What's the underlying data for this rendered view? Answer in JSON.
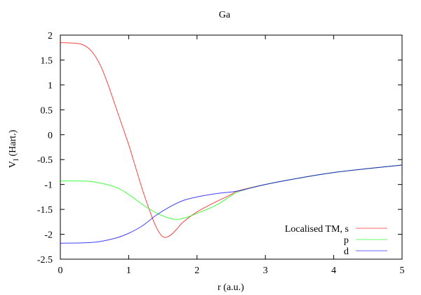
{
  "chart_data": {
    "type": "line",
    "title": "Ga",
    "xlabel": "r (a.u.)",
    "ylabel_main": "V",
    "ylabel_sub": "l",
    "ylabel_rest": " (Hart.)",
    "xlim": [
      0,
      5
    ],
    "ylim": [
      -2.5,
      2
    ],
    "xticks": [
      0,
      1,
      2,
      3,
      4,
      5
    ],
    "yticks": [
      -2.5,
      -2,
      -1.5,
      -1,
      -0.5,
      0,
      0.5,
      1,
      1.5,
      2
    ],
    "grid": false,
    "legend_placement": "bottom-right",
    "series": [
      {
        "name": "Localised TM, s",
        "color": "#ff0000",
        "x": [
          0,
          0.2,
          0.3,
          0.4,
          0.5,
          0.6,
          0.7,
          0.8,
          0.9,
          1.0,
          1.1,
          1.2,
          1.3,
          1.4,
          1.5,
          1.6,
          1.7,
          1.8,
          2.0,
          2.2,
          2.5,
          2.6,
          3.0,
          3.5,
          4.0,
          4.5,
          5.0
        ],
        "y": [
          1.85,
          1.84,
          1.82,
          1.75,
          1.6,
          1.35,
          1.0,
          0.6,
          0.2,
          -0.2,
          -0.65,
          -1.1,
          -1.5,
          -1.85,
          -2.05,
          -2.03,
          -1.9,
          -1.75,
          -1.55,
          -1.4,
          -1.2,
          -1.13,
          -1.0,
          -0.87,
          -0.76,
          -0.68,
          -0.61
        ]
      },
      {
        "name": "p",
        "color": "#00ff00",
        "x": [
          0,
          0.3,
          0.5,
          0.8,
          1.0,
          1.2,
          1.4,
          1.6,
          1.7,
          1.8,
          2.0,
          2.3,
          2.6,
          3.0,
          3.5,
          4.0,
          4.5,
          5.0
        ],
        "y": [
          -0.93,
          -0.93,
          -0.95,
          -1.05,
          -1.2,
          -1.4,
          -1.57,
          -1.68,
          -1.7,
          -1.68,
          -1.58,
          -1.4,
          -1.15,
          -1.0,
          -0.87,
          -0.76,
          -0.68,
          -0.61
        ]
      },
      {
        "name": "d",
        "color": "#0000ff",
        "x": [
          0,
          0.5,
          0.8,
          1.0,
          1.2,
          1.4,
          1.6,
          1.8,
          2.0,
          2.3,
          2.6,
          3.0,
          3.5,
          4.0,
          4.5,
          5.0
        ],
        "y": [
          -2.18,
          -2.16,
          -2.08,
          -1.98,
          -1.83,
          -1.62,
          -1.45,
          -1.32,
          -1.25,
          -1.18,
          -1.13,
          -1.0,
          -0.87,
          -0.76,
          -0.68,
          -0.61
        ]
      }
    ]
  }
}
